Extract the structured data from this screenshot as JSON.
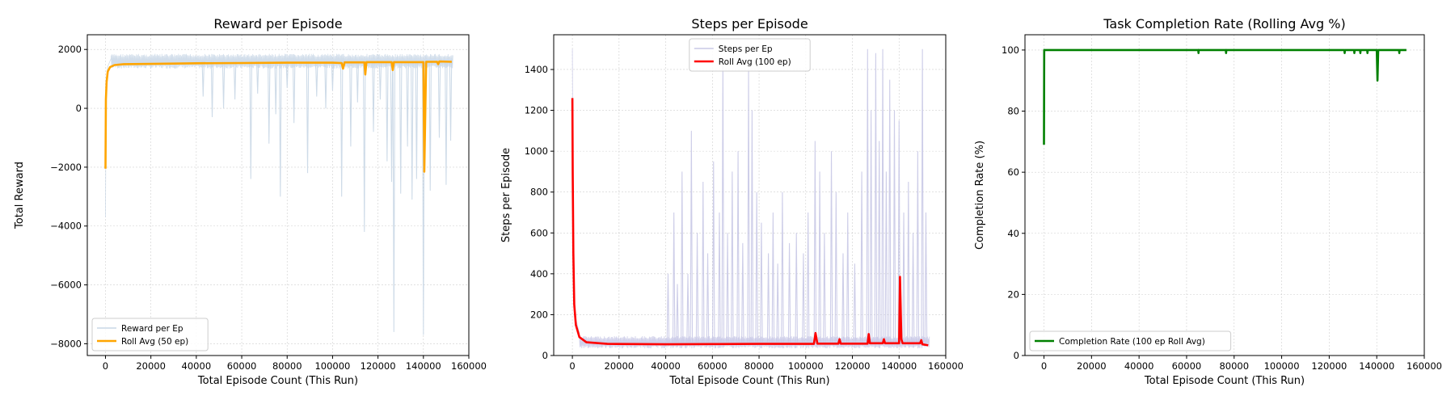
{
  "figure": {
    "width": 1800,
    "height": 500
  },
  "chart_data": [
    {
      "type": "line",
      "title": "Reward per Episode",
      "xlabel": "Total Episode Count (This Run)",
      "ylabel": "Total Reward",
      "xlim": [
        -8000,
        160000
      ],
      "ylim": [
        -8400,
        2500
      ],
      "xticks": [
        0,
        20000,
        40000,
        60000,
        80000,
        100000,
        120000,
        140000,
        160000
      ],
      "xtick_labels": [
        "0",
        "20000",
        "40000",
        "60000",
        "80000",
        "100000",
        "120000",
        "140000",
        "160000"
      ],
      "yticks": [
        -8000,
        -6000,
        -4000,
        -2000,
        0,
        2000
      ],
      "ytick_labels": [
        "−8000",
        "−6000",
        "−4000",
        "−2000",
        "0",
        "2000"
      ],
      "grid": true,
      "legend_position": "lower-left",
      "series": [
        {
          "name": "Reward per Ep",
          "color": "#c9d7e6",
          "style": "noisy",
          "points": [
            [
              0,
              -3700
            ],
            [
              300,
              600
            ],
            [
              900,
              1400
            ],
            [
              2500,
              1700
            ],
            [
              153000,
              1700
            ]
          ],
          "upper_band": 1850,
          "lower_band": 1350,
          "spikes": [
            [
              43000,
              400
            ],
            [
              47000,
              -300
            ],
            [
              52000,
              0
            ],
            [
              57000,
              300
            ],
            [
              64000,
              -2400
            ],
            [
              67000,
              500
            ],
            [
              72000,
              -1200
            ],
            [
              75000,
              -200
            ],
            [
              77000,
              -3000
            ],
            [
              80000,
              700
            ],
            [
              83000,
              -500
            ],
            [
              89000,
              -2200
            ],
            [
              93000,
              400
            ],
            [
              97000,
              0
            ],
            [
              100000,
              600
            ],
            [
              104000,
              -3000
            ],
            [
              108000,
              -1300
            ],
            [
              111000,
              200
            ],
            [
              114000,
              -4200
            ],
            [
              118000,
              -800
            ],
            [
              121000,
              300
            ],
            [
              124000,
              -1800
            ],
            [
              126000,
              -2500
            ],
            [
              127000,
              -7600
            ],
            [
              130000,
              -2900
            ],
            [
              133000,
              -1300
            ],
            [
              135000,
              -3100
            ],
            [
              137000,
              -2400
            ],
            [
              140000,
              -7700
            ],
            [
              143000,
              -2800
            ],
            [
              147000,
              -1000
            ],
            [
              150000,
              -2600
            ],
            [
              152000,
              -1100
            ]
          ]
        },
        {
          "name": "Roll Avg (50 ep)",
          "color": "#ffa500",
          "style": "line",
          "points": [
            [
              0,
              -2050
            ],
            [
              200,
              300
            ],
            [
              500,
              900
            ],
            [
              1000,
              1250
            ],
            [
              2000,
              1400
            ],
            [
              4000,
              1470
            ],
            [
              8000,
              1500
            ],
            [
              20000,
              1510
            ],
            [
              40000,
              1530
            ],
            [
              60000,
              1540
            ],
            [
              80000,
              1550
            ],
            [
              100000,
              1550
            ],
            [
              104000,
              1540
            ],
            [
              104600,
              1350
            ],
            [
              105300,
              1560
            ],
            [
              114000,
              1560
            ],
            [
              114400,
              1150
            ],
            [
              114900,
              1570
            ],
            [
              126000,
              1570
            ],
            [
              126500,
              1300
            ],
            [
              127000,
              1570
            ],
            [
              140000,
              1570
            ],
            [
              140400,
              -2150
            ],
            [
              141200,
              1580
            ],
            [
              146000,
              1580
            ],
            [
              146500,
              1500
            ],
            [
              147000,
              1590
            ],
            [
              152500,
              1580
            ]
          ]
        }
      ]
    },
    {
      "type": "line",
      "title": "Steps per Episode",
      "xlabel": "Total Episode Count (This Run)",
      "ylabel": "Steps per Episode",
      "xlim": [
        -8000,
        160000
      ],
      "ylim": [
        0,
        1570
      ],
      "xticks": [
        0,
        20000,
        40000,
        60000,
        80000,
        100000,
        120000,
        140000,
        160000
      ],
      "xtick_labels": [
        "0",
        "20000",
        "40000",
        "60000",
        "80000",
        "100000",
        "120000",
        "140000",
        "160000"
      ],
      "yticks": [
        0,
        200,
        400,
        600,
        800,
        1000,
        1200,
        1400
      ],
      "ytick_labels": [
        "0",
        "200",
        "400",
        "600",
        "800",
        "1000",
        "1200",
        "1400"
      ],
      "grid": true,
      "legend_position": "upper-center",
      "series": [
        {
          "name": "Steps per Ep",
          "color": "#c8c8e6",
          "style": "noisy",
          "points": [
            [
              0,
              1500
            ],
            [
              300,
              700
            ],
            [
              1000,
              200
            ],
            [
              3000,
              110
            ],
            [
              153000,
              90
            ]
          ],
          "upper_band": 95,
          "lower_band": 35,
          "spikes": [
            [
              41000,
              400
            ],
            [
              43500,
              700
            ],
            [
              45000,
              350
            ],
            [
              47000,
              900
            ],
            [
              49500,
              400
            ],
            [
              51000,
              1100
            ],
            [
              53500,
              600
            ],
            [
              56000,
              850
            ],
            [
              58000,
              500
            ],
            [
              60500,
              950
            ],
            [
              63000,
              700
            ],
            [
              64500,
              1450
            ],
            [
              66500,
              600
            ],
            [
              68500,
              900
            ],
            [
              71000,
              1000
            ],
            [
              73000,
              550
            ],
            [
              75500,
              1400
            ],
            [
              77000,
              1200
            ],
            [
              79000,
              800
            ],
            [
              81000,
              650
            ],
            [
              84000,
              500
            ],
            [
              86000,
              700
            ],
            [
              88000,
              450
            ],
            [
              90000,
              800
            ],
            [
              93000,
              550
            ],
            [
              96000,
              600
            ],
            [
              99000,
              500
            ],
            [
              101000,
              700
            ],
            [
              104000,
              1050
            ],
            [
              106000,
              900
            ],
            [
              108000,
              600
            ],
            [
              111000,
              1000
            ],
            [
              113000,
              800
            ],
            [
              116000,
              500
            ],
            [
              118000,
              700
            ],
            [
              121000,
              450
            ],
            [
              124000,
              900
            ],
            [
              126500,
              1500
            ],
            [
              128000,
              1200
            ],
            [
              130000,
              1480
            ],
            [
              131500,
              1050
            ],
            [
              133000,
              1500
            ],
            [
              134500,
              900
            ],
            [
              136000,
              1350
            ],
            [
              138000,
              1200
            ],
            [
              140000,
              1150
            ],
            [
              142000,
              700
            ],
            [
              144000,
              850
            ],
            [
              146000,
              600
            ],
            [
              148000,
              1000
            ],
            [
              150000,
              1500
            ],
            [
              151500,
              700
            ]
          ]
        },
        {
          "name": "Roll Avg (100 ep)",
          "color": "#ff0000",
          "style": "line",
          "points": [
            [
              0,
              1260
            ],
            [
              150,
              900
            ],
            [
              400,
              500
            ],
            [
              800,
              250
            ],
            [
              1500,
              150
            ],
            [
              3000,
              90
            ],
            [
              6000,
              65
            ],
            [
              15000,
              57
            ],
            [
              40000,
              55
            ],
            [
              60000,
              56
            ],
            [
              80000,
              57
            ],
            [
              100000,
              57
            ],
            [
              103500,
              57
            ],
            [
              104200,
              110
            ],
            [
              105000,
              58
            ],
            [
              114000,
              58
            ],
            [
              114500,
              80
            ],
            [
              115000,
              58
            ],
            [
              126500,
              58
            ],
            [
              127000,
              105
            ],
            [
              127500,
              60
            ],
            [
              133000,
              60
            ],
            [
              133500,
              80
            ],
            [
              134000,
              60
            ],
            [
              140000,
              60
            ],
            [
              140400,
              385
            ],
            [
              141000,
              80
            ],
            [
              141500,
              60
            ],
            [
              149000,
              60
            ],
            [
              149500,
              75
            ],
            [
              150000,
              55
            ],
            [
              152500,
              50
            ]
          ]
        }
      ]
    },
    {
      "type": "line",
      "title": "Task Completion Rate (Rolling Avg %)",
      "xlabel": "Total Episode Count (This Run)",
      "ylabel": "Completion Rate (%)",
      "xlim": [
        -8000,
        160000
      ],
      "ylim": [
        0,
        105
      ],
      "xticks": [
        0,
        20000,
        40000,
        60000,
        80000,
        100000,
        120000,
        140000,
        160000
      ],
      "xtick_labels": [
        "0",
        "20000",
        "40000",
        "60000",
        "80000",
        "100000",
        "120000",
        "140000",
        "160000"
      ],
      "yticks": [
        0,
        20,
        40,
        60,
        80,
        100
      ],
      "ytick_labels": [
        "0",
        "20",
        "40",
        "60",
        "80",
        "100"
      ],
      "grid": true,
      "legend_position": "lower-left",
      "series": [
        {
          "name": "Completion Rate (100 ep Roll Avg)",
          "color": "#008000",
          "style": "line",
          "points": [
            [
              0,
              69
            ],
            [
              100,
              100
            ],
            [
              64900,
              100
            ],
            [
              65000,
              99
            ],
            [
              65100,
              100
            ],
            [
              76500,
              100
            ],
            [
              76600,
              99
            ],
            [
              76700,
              100
            ],
            [
              126400,
              100
            ],
            [
              126500,
              99
            ],
            [
              126600,
              100
            ],
            [
              130500,
              100
            ],
            [
              130600,
              99
            ],
            [
              130700,
              100
            ],
            [
              133000,
              100
            ],
            [
              133100,
              99
            ],
            [
              133200,
              100
            ],
            [
              136000,
              100
            ],
            [
              136100,
              99
            ],
            [
              136200,
              100
            ],
            [
              140000,
              100
            ],
            [
              140300,
              90
            ],
            [
              140600,
              100
            ],
            [
              149400,
              100
            ],
            [
              149500,
              99
            ],
            [
              149600,
              100
            ],
            [
              152500,
              100
            ]
          ]
        }
      ]
    }
  ]
}
